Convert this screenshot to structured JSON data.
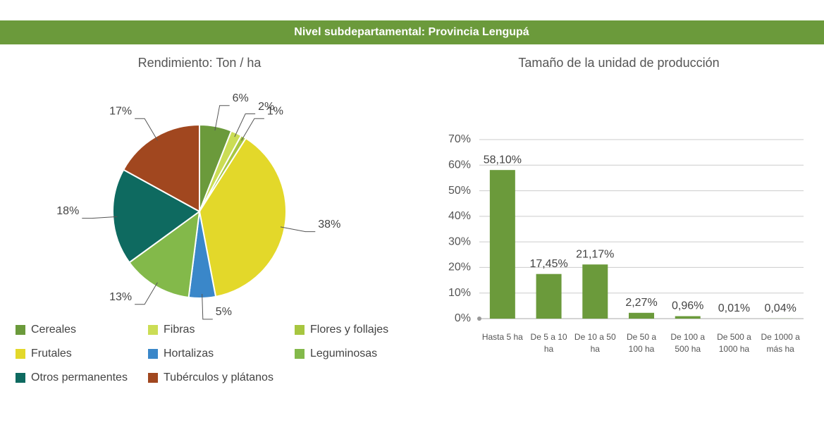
{
  "header": {
    "title": "Nivel subdepartamental: Provincia Lengupá"
  },
  "chart_data": [
    {
      "type": "pie",
      "title": "Rendimiento: Ton / ha",
      "categories": [
        "Cereales",
        "Fibras",
        "Flores y follajes",
        "Frutales",
        "Hortalizas",
        "Leguminosas",
        "Otros permanentes",
        "Tubérculos y plátanos"
      ],
      "values": [
        6,
        2,
        1,
        38,
        5,
        13,
        18,
        17
      ],
      "value_labels": [
        "6%",
        "2%",
        "1%",
        "38%",
        "5%",
        "13%",
        "18%",
        "17%"
      ],
      "colors": [
        "#6b9a3b",
        "#cbdd55",
        "#a7c640",
        "#e3d82a",
        "#3a87c9",
        "#83b94a",
        "#0e6a60",
        "#a1471f"
      ],
      "legend": "bottom"
    },
    {
      "type": "bar",
      "title": "Tamaño de la unidad de producción",
      "categories": [
        "Hasta 5 ha",
        "De 5 a 10 ha",
        "De 10 a 50 ha",
        "De 50 a 100 ha",
        "De 100 a 500 ha",
        "De 500 a 1000 ha",
        "De 1000 a más ha"
      ],
      "values": [
        58.1,
        17.45,
        21.17,
        2.27,
        0.96,
        0.01,
        0.04
      ],
      "value_labels": [
        "58,10%",
        "17,45%",
        "21,17%",
        "2,27%",
        "0,96%",
        "0,01%",
        "0,04%"
      ],
      "color": "#6b9a3b",
      "ylim": [
        0,
        70
      ],
      "yticks": [
        {
          "value": 0,
          "label": "0%"
        },
        {
          "value": 10,
          "label": "10%"
        },
        {
          "value": 20,
          "label": "20%"
        },
        {
          "value": 30,
          "label": "30%"
        },
        {
          "value": 40,
          "label": "40%"
        },
        {
          "value": 50,
          "label": "50%"
        },
        {
          "value": 60,
          "label": "60%"
        },
        {
          "value": 70,
          "label": "70%"
        }
      ],
      "grid": true
    }
  ]
}
